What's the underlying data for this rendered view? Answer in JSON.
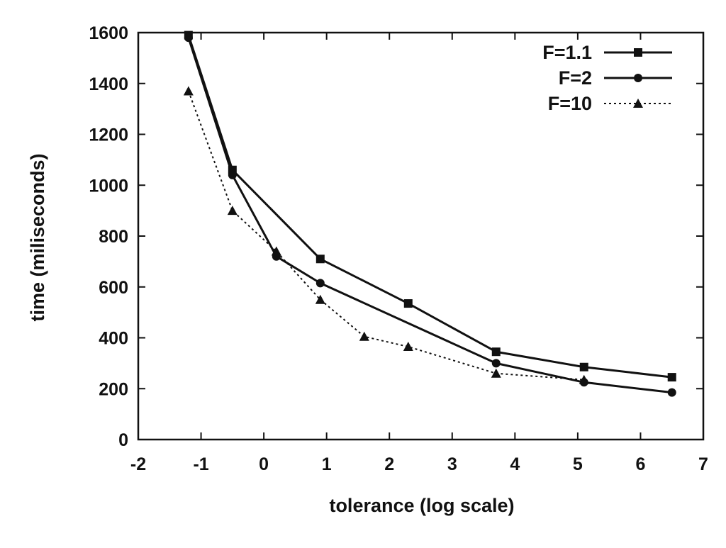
{
  "chart_data": {
    "type": "line",
    "title": "",
    "xlabel": "tolerance (log scale)",
    "ylabel": "time (miliseconds)",
    "xlim": [
      -2,
      7
    ],
    "ylim": [
      0,
      1600
    ],
    "xticks": [
      -2,
      -1,
      0,
      1,
      2,
      3,
      4,
      5,
      6,
      7
    ],
    "yticks": [
      0,
      200,
      400,
      600,
      800,
      1000,
      1200,
      1400,
      1600
    ],
    "grid": false,
    "legend_position": "top-right",
    "series": [
      {
        "name": "F=1.1",
        "style": "solid",
        "marker": "square",
        "x": [
          -1.2,
          -0.5,
          0.9,
          2.3,
          3.7,
          5.1,
          6.5
        ],
        "y": [
          1590,
          1060,
          710,
          535,
          345,
          285,
          245
        ]
      },
      {
        "name": "F=2",
        "style": "solid",
        "marker": "circle",
        "x": [
          -1.2,
          -0.5,
          0.2,
          0.9,
          3.7,
          5.1,
          6.5
        ],
        "y": [
          1580,
          1040,
          720,
          615,
          300,
          225,
          185
        ]
      },
      {
        "name": "F=10",
        "style": "dotted",
        "marker": "triangle",
        "x": [
          -1.2,
          -0.5,
          0.2,
          0.9,
          1.6,
          2.3,
          3.7,
          5.1
        ],
        "y": [
          1370,
          900,
          740,
          550,
          405,
          365,
          260,
          235
        ]
      }
    ]
  }
}
